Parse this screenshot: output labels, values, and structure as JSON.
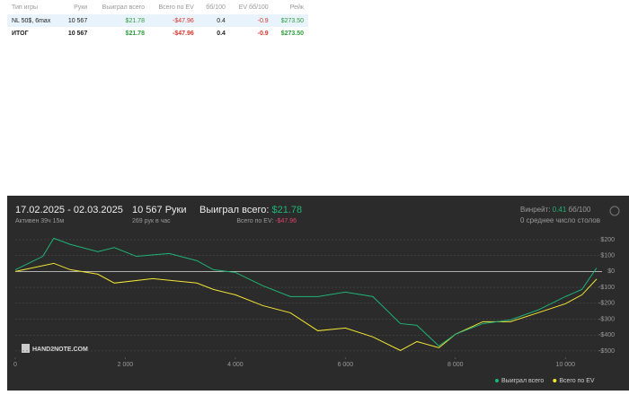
{
  "table": {
    "headers": [
      "Тип игры",
      "Руки",
      "Выиграл всего",
      "Всего по EV",
      "бб/100",
      "EV бб/100",
      "Рейк"
    ],
    "rows": [
      [
        "NL 50$, 6max",
        "10 567",
        "$21.78",
        "-$47.96",
        "0.4",
        "-0.9",
        "$273.50"
      ],
      [
        "ИТОГ",
        "10 567",
        "$21.78",
        "-$47.96",
        "0.4",
        "-0.9",
        "$273.50"
      ]
    ]
  },
  "panel": {
    "dates": "17.02.2025 - 02.03.2025",
    "active": "Активен 39ч 15м",
    "hands": "10 567 Руки",
    "rate": "269 рук в час",
    "won_label": "Выиграл всего:",
    "won": "$21.78",
    "ev_label": "Всего по EV:",
    "ev": "-$47.96",
    "winrate_label": "Винрейт:",
    "winrate": "0.41",
    "winrate_unit": "бб/100",
    "tables": "0 среднее число столов",
    "logo": "HAND2NOTE.COM"
  },
  "chart_data": {
    "type": "line",
    "xlim": [
      0,
      10600
    ],
    "ylim": [
      -540,
      228
    ],
    "grid": true,
    "xticks": [
      0,
      {
        "value": 2000,
        "label": "2 000"
      },
      {
        "value": 4000,
        "label": "4 000"
      },
      {
        "value": 6000,
        "label": "6 000"
      },
      {
        "value": 8000,
        "label": "8 000"
      },
      {
        "value": 10000,
        "label": "10 000"
      }
    ],
    "yticks": [
      {
        "value": 200,
        "label": "$200"
      },
      {
        "value": 100,
        "label": "$100"
      },
      {
        "value": 0,
        "label": "$0"
      },
      {
        "value": -100,
        "label": "-$100"
      },
      {
        "value": -200,
        "label": "-$200"
      },
      {
        "value": -300,
        "label": "-$300"
      },
      {
        "value": -400,
        "label": "-$400"
      },
      {
        "value": -500,
        "label": "-$500"
      }
    ],
    "series": [
      {
        "name": "Выиграл всего",
        "color": "#1fb37a",
        "x": [
          0,
          500,
          700,
          1000,
          1500,
          1800,
          2200,
          2800,
          3300,
          3600,
          4000,
          4500,
          5000,
          5500,
          6000,
          6500,
          7000,
          7300,
          7700,
          8000,
          8500,
          9000,
          9500,
          10000,
          10300,
          10567
        ],
        "values": [
          10,
          95,
          209,
          170,
          124,
          150,
          95,
          113,
          68,
          11,
          -6,
          -90,
          -158,
          -158,
          -130,
          -158,
          -328,
          -339,
          -469,
          -395,
          -328,
          -305,
          -243,
          -158,
          -113,
          21.78
        ]
      },
      {
        "name": "Всего по EV",
        "color": "#f2e634",
        "x": [
          0,
          700,
          1000,
          1500,
          1800,
          2500,
          3300,
          3600,
          4000,
          4500,
          5000,
          5500,
          6000,
          6500,
          7000,
          7300,
          7700,
          8000,
          8500,
          9000,
          9500,
          10000,
          10300,
          10567
        ],
        "values": [
          0,
          51,
          11,
          -17,
          -73,
          -45,
          -73,
          -113,
          -147,
          -215,
          -260,
          -373,
          -356,
          -412,
          -497,
          -441,
          -480,
          -395,
          -316,
          -316,
          -260,
          -203,
          -147,
          -47.96
        ]
      }
    ]
  }
}
